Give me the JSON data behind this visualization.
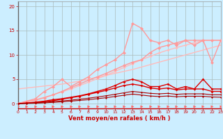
{
  "background_color": "#cceeff",
  "grid_color": "#aabbbb",
  "xlabel": "Vent moyen/en rafales ( km/h )",
  "xlim": [
    0,
    23
  ],
  "ylim": [
    -1,
    21
  ],
  "xticks": [
    0,
    1,
    2,
    3,
    4,
    5,
    6,
    7,
    8,
    9,
    10,
    11,
    12,
    13,
    14,
    15,
    16,
    17,
    18,
    19,
    20,
    21,
    22,
    23
  ],
  "yticks": [
    0,
    5,
    10,
    15,
    20
  ],
  "series": [
    {
      "x": [
        0,
        1,
        2,
        3,
        4,
        5,
        6,
        7,
        8,
        9,
        10,
        11,
        12,
        13,
        14,
        15,
        16,
        17,
        18,
        19,
        20,
        21,
        22,
        23
      ],
      "y": [
        3.0,
        3.2,
        3.4,
        3.6,
        3.8,
        4.0,
        4.3,
        4.6,
        5.0,
        5.4,
        5.8,
        6.2,
        6.6,
        7.0,
        7.5,
        8.0,
        8.5,
        9.0,
        9.5,
        10.0,
        10.5,
        11.0,
        11.5,
        12.0
      ],
      "color": "#ffbbbb",
      "lw": 1.0,
      "marker": null,
      "zorder": 2
    },
    {
      "x": [
        0,
        1,
        2,
        3,
        4,
        5,
        6,
        7,
        8,
        9,
        10,
        11,
        12,
        13,
        14,
        15,
        16,
        17,
        18,
        19,
        20,
        21,
        22,
        23
      ],
      "y": [
        0.0,
        0.4,
        0.8,
        1.3,
        1.8,
        2.4,
        3.0,
        3.7,
        4.4,
        5.1,
        5.8,
        6.6,
        7.4,
        8.2,
        9.0,
        9.7,
        10.4,
        11.0,
        11.5,
        12.0,
        12.5,
        13.0,
        13.0,
        13.0
      ],
      "color": "#ffbbbb",
      "lw": 1.0,
      "marker": "D",
      "markersize": 2.0,
      "zorder": 2
    },
    {
      "x": [
        0,
        1,
        2,
        3,
        4,
        5,
        6,
        7,
        8,
        9,
        10,
        11,
        12,
        13,
        14,
        15,
        16,
        17,
        18,
        19,
        20,
        21,
        22,
        23
      ],
      "y": [
        0.0,
        0.5,
        1.0,
        2.5,
        3.5,
        5.0,
        3.5,
        4.5,
        5.5,
        7.0,
        8.0,
        9.0,
        10.5,
        16.5,
        15.5,
        13.0,
        12.5,
        13.0,
        12.0,
        13.0,
        12.0,
        13.0,
        8.5,
        13.0
      ],
      "color": "#ff9999",
      "lw": 1.0,
      "marker": "D",
      "markersize": 2.5,
      "zorder": 3
    },
    {
      "x": [
        0,
        1,
        2,
        3,
        4,
        5,
        6,
        7,
        8,
        9,
        10,
        11,
        12,
        13,
        14,
        15,
        16,
        17,
        18,
        19,
        20,
        21,
        22,
        23
      ],
      "y": [
        0.0,
        0.3,
        0.7,
        1.2,
        1.8,
        2.5,
        3.3,
        4.0,
        4.8,
        5.5,
        6.2,
        7.0,
        7.8,
        8.5,
        9.0,
        10.5,
        11.5,
        12.0,
        12.5,
        13.0,
        13.0,
        13.0,
        13.0,
        13.0
      ],
      "color": "#ff9999",
      "lw": 1.0,
      "marker": "D",
      "markersize": 2.5,
      "zorder": 3
    },
    {
      "x": [
        0,
        1,
        2,
        3,
        4,
        5,
        6,
        7,
        8,
        9,
        10,
        11,
        12,
        13,
        14,
        15,
        16,
        17,
        18,
        19,
        20,
        21,
        22,
        23
      ],
      "y": [
        0.0,
        0.1,
        0.3,
        0.5,
        0.8,
        1.0,
        1.3,
        1.6,
        2.0,
        2.5,
        3.0,
        3.7,
        4.5,
        5.0,
        4.5,
        3.5,
        3.5,
        4.0,
        3.0,
        3.5,
        3.0,
        5.0,
        3.0,
        3.0
      ],
      "color": "#dd0000",
      "lw": 1.0,
      "marker": "D",
      "markersize": 2.0,
      "zorder": 4
    },
    {
      "x": [
        0,
        1,
        2,
        3,
        4,
        5,
        6,
        7,
        8,
        9,
        10,
        11,
        12,
        13,
        14,
        15,
        16,
        17,
        18,
        19,
        20,
        21,
        22,
        23
      ],
      "y": [
        0.0,
        0.1,
        0.2,
        0.4,
        0.6,
        0.9,
        1.2,
        1.5,
        1.9,
        2.3,
        2.7,
        3.2,
        3.7,
        4.0,
        3.7,
        3.2,
        3.0,
        3.2,
        2.8,
        3.0,
        3.0,
        3.0,
        2.5,
        2.5
      ],
      "color": "#dd0000",
      "lw": 1.0,
      "marker": "D",
      "markersize": 2.0,
      "zorder": 4
    },
    {
      "x": [
        0,
        1,
        2,
        3,
        4,
        5,
        6,
        7,
        8,
        9,
        10,
        11,
        12,
        13,
        14,
        15,
        16,
        17,
        18,
        19,
        20,
        21,
        22,
        23
      ],
      "y": [
        0.0,
        0.05,
        0.15,
        0.25,
        0.4,
        0.55,
        0.7,
        0.9,
        1.1,
        1.35,
        1.6,
        1.9,
        2.2,
        2.5,
        2.3,
        2.1,
        2.0,
        2.1,
        1.9,
        2.0,
        2.0,
        2.0,
        1.8,
        1.8
      ],
      "color": "#aa0000",
      "lw": 0.8,
      "marker": "D",
      "markersize": 1.5,
      "zorder": 4
    },
    {
      "x": [
        0,
        1,
        2,
        3,
        4,
        5,
        6,
        7,
        8,
        9,
        10,
        11,
        12,
        13,
        14,
        15,
        16,
        17,
        18,
        19,
        20,
        21,
        22,
        23
      ],
      "y": [
        0.0,
        0.02,
        0.08,
        0.15,
        0.25,
        0.35,
        0.5,
        0.65,
        0.8,
        1.0,
        1.2,
        1.45,
        1.7,
        1.95,
        1.75,
        1.55,
        1.45,
        1.55,
        1.4,
        1.5,
        1.5,
        1.5,
        1.35,
        1.3
      ],
      "color": "#aa0000",
      "lw": 0.8,
      "marker": "D",
      "markersize": 1.5,
      "zorder": 4
    },
    {
      "x": [
        0,
        1,
        2,
        3,
        4,
        5,
        6,
        7,
        8,
        9,
        10,
        11,
        12,
        13,
        14,
        15,
        16,
        17,
        18,
        19,
        20,
        21,
        22,
        23
      ],
      "y": [
        -0.55,
        -0.55,
        -0.55,
        -0.55,
        -0.55,
        -0.55,
        -0.55,
        -0.55,
        -0.55,
        -0.55,
        -0.55,
        -0.55,
        -0.55,
        -0.55,
        -0.55,
        -0.55,
        -0.55,
        -0.55,
        -0.55,
        -0.55,
        -0.55,
        -0.55,
        -0.55,
        -0.55
      ],
      "color": "#ff6666",
      "lw": 0,
      "marker": ">",
      "markersize": 3.0,
      "linestyle": "none",
      "zorder": 5
    }
  ]
}
